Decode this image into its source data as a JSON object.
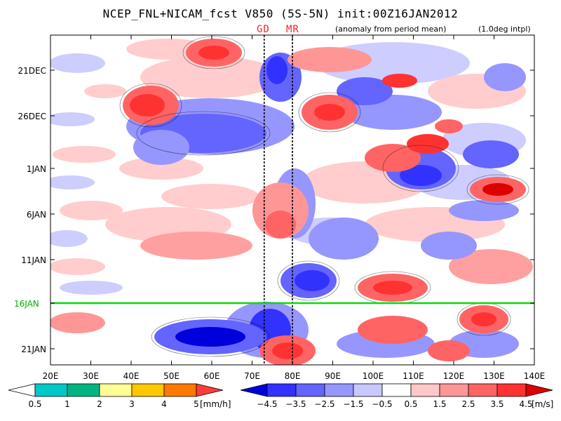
{
  "title": "NCEP_FNL+NICAM_fcst V850 (5S-5N) init:00Z16JAN2012",
  "subtitle": "(anomaly from period mean)",
  "interp_note": "(1.0deg intpl)",
  "markers": [
    {
      "label": "GD",
      "lon": 73
    },
    {
      "label": "MR",
      "lon": 80
    }
  ],
  "init_date_label": "16JAN",
  "x_axis": {
    "ticks": [
      "20E",
      "30E",
      "40E",
      "50E",
      "60E",
      "70E",
      "80E",
      "90E",
      "100E",
      "110E",
      "120E",
      "130E",
      "140E"
    ],
    "range": [
      20,
      140
    ]
  },
  "y_axis": {
    "ticks": [
      "21DEC",
      "26DEC",
      "1JAN",
      "6JAN",
      "11JAN",
      "16JAN",
      "21JAN"
    ]
  },
  "rain_legend": {
    "labels": [
      "0.5",
      "1",
      "2",
      "3",
      "4",
      "5"
    ],
    "unit": "[mm/h]",
    "colors": [
      "#ffffff",
      "#00c8c8",
      "#00b482",
      "#ffff96",
      "#ffc800",
      "#ff7800",
      "#ff3c3c"
    ]
  },
  "wind_legend": {
    "labels": [
      "−4.5",
      "−3.5",
      "−2.5",
      "−1.5",
      "−0.5",
      "0.5",
      "1.5",
      "2.5",
      "3.5",
      "4.5"
    ],
    "unit": "[m/s]",
    "colors": [
      "#0000dc",
      "#3232ff",
      "#6464ff",
      "#9696ff",
      "#c8c8ff",
      "#ffffff",
      "#ffc8c8",
      "#ff9696",
      "#ff6464",
      "#ff3232",
      "#dc0000"
    ]
  }
}
